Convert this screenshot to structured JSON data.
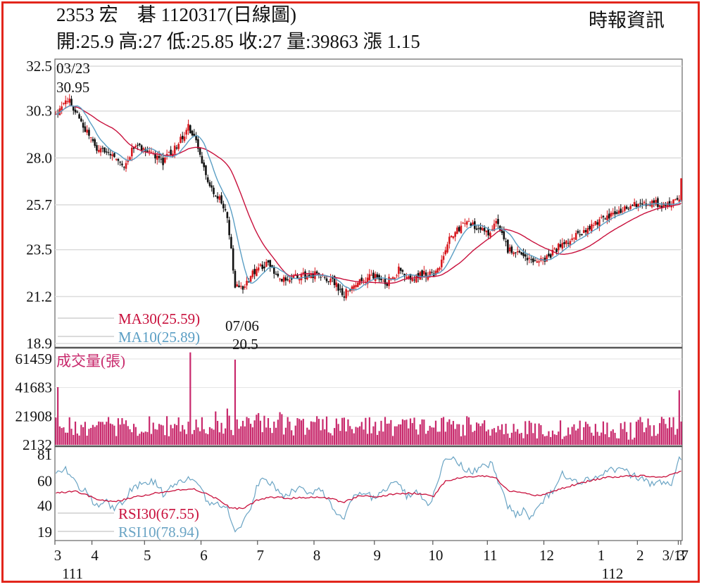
{
  "header": {
    "title": "2353 宏　碁 1120317(日線圖)",
    "ohlc": "開:25.9 高:27 低:25.85 收:27 量:39863 漲 1.15",
    "source": "時報資訊"
  },
  "colors": {
    "up": "#d8191f",
    "down": "#111111",
    "ma30": "#c8103c",
    "ma10": "#5a9ec4",
    "volume": "#c8296c",
    "rsi30": "#c8103c",
    "rsi10": "#6aa4c4",
    "frame": "#e2261c"
  },
  "chart_data": [
    {
      "type": "candlestick",
      "panel": "price",
      "y_ticks": [
        "32.5",
        "30.3",
        "28.0",
        "25.7",
        "23.5",
        "21.2",
        "18.9"
      ],
      "ylim": [
        18.9,
        32.5
      ],
      "grid": true,
      "annotations": [
        {
          "date": "03/23",
          "value": "30.95"
        },
        {
          "date": "07/06",
          "value": "20.5"
        }
      ],
      "legend": [
        {
          "name": "MA30(25.59)",
          "color": "#c8103c"
        },
        {
          "name": "MA10(25.89)",
          "color": "#5a9ec4"
        }
      ],
      "close_waypoints": [
        [
          0,
          30.0
        ],
        [
          6,
          30.9
        ],
        [
          13,
          29.8
        ],
        [
          20,
          28.5
        ],
        [
          28,
          28.2
        ],
        [
          35,
          27.5
        ],
        [
          40,
          28.6
        ],
        [
          48,
          28.3
        ],
        [
          55,
          27.8
        ],
        [
          62,
          28.6
        ],
        [
          68,
          29.5
        ],
        [
          72,
          28.8
        ],
        [
          78,
          26.8
        ],
        [
          85,
          25.8
        ],
        [
          88,
          25.1
        ],
        [
          92,
          21.8
        ],
        [
          96,
          21.6
        ],
        [
          103,
          22.6
        ],
        [
          108,
          22.8
        ],
        [
          116,
          22.1
        ],
        [
          125,
          22.2
        ],
        [
          134,
          22.3
        ],
        [
          142,
          22.0
        ],
        [
          148,
          21.3
        ],
        [
          156,
          22.0
        ],
        [
          164,
          22.2
        ],
        [
          170,
          21.9
        ],
        [
          176,
          22.5
        ],
        [
          182,
          22.0
        ],
        [
          188,
          22.3
        ],
        [
          195,
          22.3
        ],
        [
          203,
          24.2
        ],
        [
          210,
          24.8
        ],
        [
          216,
          24.6
        ],
        [
          222,
          24.2
        ],
        [
          226,
          24.9
        ],
        [
          232,
          23.5
        ],
        [
          240,
          23.2
        ],
        [
          246,
          22.9
        ],
        [
          252,
          23.1
        ],
        [
          260,
          23.8
        ],
        [
          268,
          24.2
        ],
        [
          276,
          24.8
        ],
        [
          286,
          25.3
        ],
        [
          296,
          25.7
        ],
        [
          306,
          25.8
        ],
        [
          314,
          25.7
        ],
        [
          320,
          25.9
        ],
        [
          321,
          27.0
        ]
      ],
      "last": {
        "open": 25.9,
        "high": 27,
        "low": 25.85,
        "close": 27
      }
    },
    {
      "type": "bar",
      "panel": "volume",
      "label": "成交量(張)",
      "y_ticks": [
        "61459",
        "41683",
        "21908",
        "2132"
      ],
      "ylim": [
        2132,
        61459
      ],
      "spikes": [
        [
          1,
          42000
        ],
        [
          69,
          66000
        ],
        [
          92,
          61000
        ],
        [
          320,
          39863
        ]
      ]
    },
    {
      "type": "line",
      "panel": "rsi",
      "y_ticks": [
        "81",
        "60",
        "40",
        "19"
      ],
      "ylim": [
        19,
        81
      ],
      "legend": [
        {
          "name": "RSI30(67.55)",
          "color": "#c8103c"
        },
        {
          "name": "RSI10(78.94)",
          "color": "#6aa4c4"
        }
      ],
      "rsi10_waypoints": [
        [
          0,
          65
        ],
        [
          5,
          70
        ],
        [
          10,
          58
        ],
        [
          15,
          52
        ],
        [
          20,
          40
        ],
        [
          25,
          44
        ],
        [
          30,
          38
        ],
        [
          35,
          45
        ],
        [
          40,
          55
        ],
        [
          50,
          60
        ],
        [
          55,
          50
        ],
        [
          60,
          55
        ],
        [
          68,
          62
        ],
        [
          72,
          60
        ],
        [
          76,
          48
        ],
        [
          80,
          42
        ],
        [
          85,
          40
        ],
        [
          88,
          38
        ],
        [
          92,
          22
        ],
        [
          96,
          25
        ],
        [
          100,
          40
        ],
        [
          104,
          58
        ],
        [
          108,
          62
        ],
        [
          112,
          55
        ],
        [
          118,
          48
        ],
        [
          124,
          55
        ],
        [
          130,
          50
        ],
        [
          136,
          54
        ],
        [
          140,
          45
        ],
        [
          145,
          32
        ],
        [
          148,
          28
        ],
        [
          152,
          45
        ],
        [
          158,
          50
        ],
        [
          164,
          46
        ],
        [
          170,
          55
        ],
        [
          176,
          58
        ],
        [
          180,
          48
        ],
        [
          186,
          52
        ],
        [
          192,
          40
        ],
        [
          196,
          58
        ],
        [
          200,
          80
        ],
        [
          205,
          76
        ],
        [
          210,
          70
        ],
        [
          215,
          68
        ],
        [
          220,
          75
        ],
        [
          224,
          72
        ],
        [
          228,
          55
        ],
        [
          232,
          40
        ],
        [
          236,
          33
        ],
        [
          240,
          36
        ],
        [
          244,
          30
        ],
        [
          248,
          38
        ],
        [
          252,
          48
        ],
        [
          256,
          52
        ],
        [
          260,
          65
        ],
        [
          264,
          60
        ],
        [
          268,
          58
        ],
        [
          272,
          62
        ],
        [
          276,
          60
        ],
        [
          282,
          66
        ],
        [
          288,
          70
        ],
        [
          294,
          66
        ],
        [
          300,
          62
        ],
        [
          306,
          58
        ],
        [
          312,
          60
        ],
        [
          316,
          55
        ],
        [
          320,
          79
        ]
      ],
      "rsi30_waypoints": [
        [
          0,
          50
        ],
        [
          10,
          52
        ],
        [
          20,
          46
        ],
        [
          30,
          43
        ],
        [
          40,
          47
        ],
        [
          50,
          50
        ],
        [
          60,
          52
        ],
        [
          70,
          54
        ],
        [
          80,
          48
        ],
        [
          90,
          38
        ],
        [
          96,
          38
        ],
        [
          104,
          45
        ],
        [
          112,
          47
        ],
        [
          120,
          46
        ],
        [
          130,
          47
        ],
        [
          140,
          46
        ],
        [
          148,
          43
        ],
        [
          156,
          48
        ],
        [
          164,
          47
        ],
        [
          176,
          50
        ],
        [
          186,
          50
        ],
        [
          194,
          48
        ],
        [
          200,
          60
        ],
        [
          210,
          63
        ],
        [
          220,
          64
        ],
        [
          226,
          62
        ],
        [
          232,
          52
        ],
        [
          240,
          50
        ],
        [
          248,
          48
        ],
        [
          256,
          52
        ],
        [
          264,
          56
        ],
        [
          274,
          60
        ],
        [
          284,
          63
        ],
        [
          294,
          64
        ],
        [
          304,
          64
        ],
        [
          312,
          63
        ],
        [
          320,
          67.55
        ]
      ]
    }
  ],
  "x_axis": {
    "labels": [
      "3",
      "4",
      "5",
      "6",
      "7",
      "8",
      "9",
      "10",
      "11",
      "12",
      "1",
      "2",
      "3",
      "3/17"
    ],
    "label_index": [
      0,
      19,
      46,
      75,
      104,
      133,
      164,
      194,
      222,
      251,
      279,
      299,
      320,
      332
    ],
    "years": [
      {
        "label": "111",
        "index": 4
      },
      {
        "label": "112",
        "index": 279
      }
    ]
  }
}
